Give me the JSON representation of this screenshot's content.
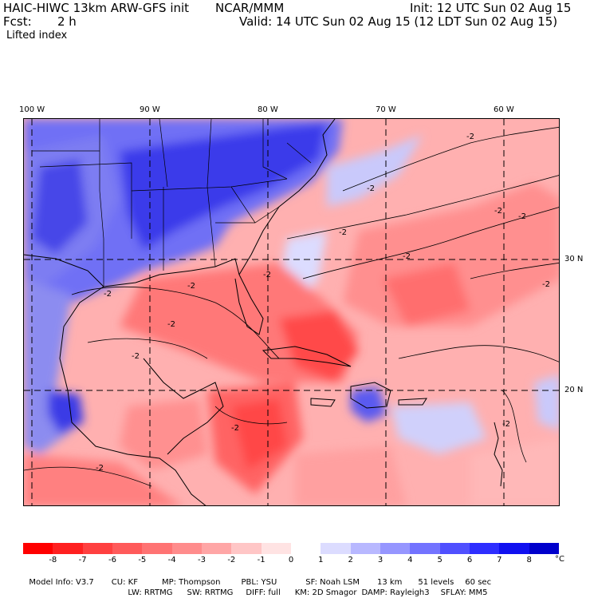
{
  "header": {
    "title": "HAIC-HIWC 13km ARW-GFS init",
    "org": "NCAR/MMM",
    "init": "Init: 12 UTC Sun 02 Aug 15",
    "fcst_label": "Fcst:",
    "fcst_value": "2 h",
    "valid": "Valid: 14 UTC Sun 02 Aug 15 (12 LDT Sun 02 Aug 15)",
    "field": "Lifted index"
  },
  "axes": {
    "lon_labels": [
      "100 W",
      "90 W",
      "80 W",
      "70 W",
      "60 W"
    ],
    "lat_labels": [
      "30 N",
      "20 N"
    ]
  },
  "contour_label": "-2",
  "colorbar": {
    "unit": "°C",
    "ticks": [
      "-8",
      "-7",
      "-6",
      "-5",
      "-4",
      "-3",
      "-2",
      "-1",
      "0",
      "1",
      "2",
      "3",
      "4",
      "5",
      "6",
      "7",
      "8"
    ],
    "colors": [
      "#ff0000",
      "#ff2020",
      "#ff4040",
      "#ff5a5a",
      "#ff7373",
      "#ff8c8c",
      "#ffa6a6",
      "#ffc6c6",
      "#ffe3e3",
      "#ffffff",
      "#dcdcff",
      "#b8b8ff",
      "#9696ff",
      "#7373ff",
      "#5050ff",
      "#2e2eff",
      "#1010f0",
      "#0000cc"
    ]
  },
  "model_info": {
    "line1": [
      "Model Info: V3.7",
      "CU: KF",
      "MP: Thompson",
      "PBL: YSU",
      "SF: Noah LSM",
      "13 km",
      "51 levels",
      "60 sec"
    ],
    "line2": [
      "LW: RRTMG",
      "SW: RRTMG",
      "DIFF: full",
      "KM: 2D Smagor",
      "DAMP: Rayleigh3",
      "SFLAY: MM5"
    ]
  }
}
